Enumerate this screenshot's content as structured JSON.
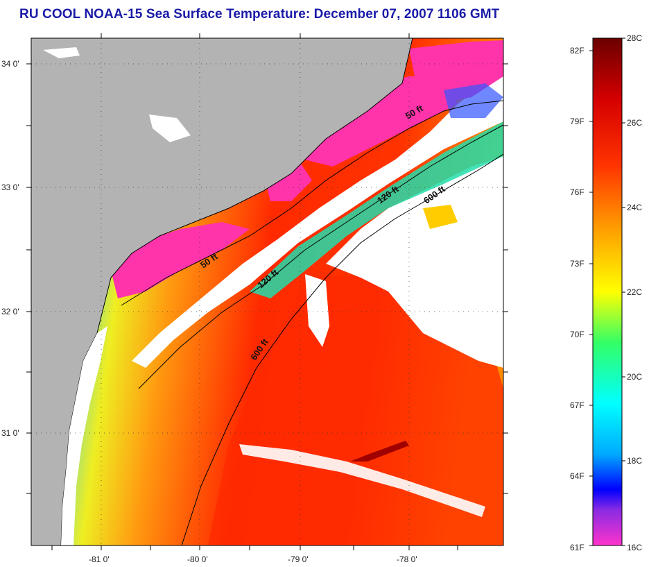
{
  "title": "RU COOL  NOAA-15  Sea Surface Temperature:  December 07, 2007 1106 GMT",
  "map": {
    "lat_ticks": [
      "34 0'",
      "33 0'",
      "32 0'",
      "31 0'"
    ],
    "lon_ticks": [
      "-81 0'",
      "-80 0'",
      "-79 0'",
      "-78 0'"
    ],
    "lat_range": [
      30.1,
      34.2
    ],
    "lon_range": [
      -81.6,
      -77.1
    ],
    "contours": [
      "50 ft",
      "120 ft",
      "600 ft"
    ],
    "colors": {
      "land": "#b3b3b3",
      "cloud": "#ffffff",
      "coast": "#000000"
    }
  },
  "colorbar": {
    "c_labels": [
      "28C",
      "26C",
      "24C",
      "22C",
      "20C",
      "18C",
      "16C"
    ],
    "f_labels": [
      "82F",
      "79F",
      "76F",
      "73F",
      "70F",
      "67F",
      "64F",
      "61F"
    ],
    "range_c": [
      16,
      28
    ],
    "stops": [
      "#ff33cc",
      "#8a2be2",
      "#0000ff",
      "#00aaff",
      "#00ffff",
      "#33ff66",
      "#ffff00",
      "#ff9900",
      "#ff3300",
      "#d40000",
      "#6b0000"
    ]
  }
}
